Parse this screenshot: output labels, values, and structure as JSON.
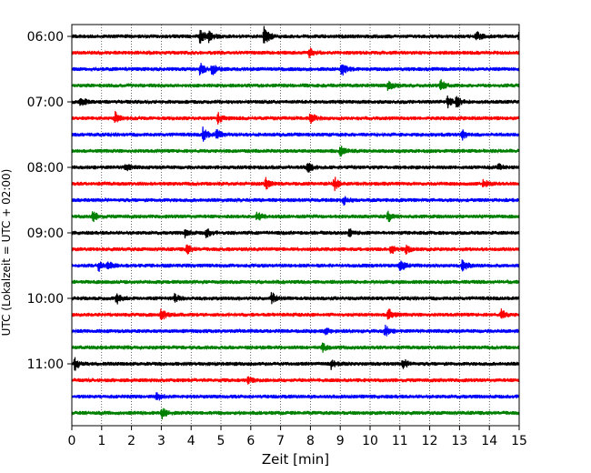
{
  "chart_data": {
    "type": "line",
    "title": "",
    "xlabel": "Zeit  [min]",
    "ylabel": "UTC (Lokalzeit = UTC + 02:00)",
    "xlim": [
      0,
      15
    ],
    "x_ticks": [
      0,
      1,
      2,
      3,
      4,
      5,
      6,
      7,
      8,
      9,
      10,
      11,
      12,
      13,
      14,
      15
    ],
    "x_tick_labels": [
      "0",
      "1",
      "2",
      "3",
      "4",
      "5",
      "6",
      "7",
      "8",
      "9",
      "10",
      "11",
      "12",
      "13",
      "14",
      "15"
    ],
    "y_tick_labels": [
      {
        "label": "06:00",
        "trace": 0
      },
      {
        "label": "07:00",
        "trace": 4
      },
      {
        "label": "08:00",
        "trace": 8
      },
      {
        "label": "09:00",
        "trace": 12
      },
      {
        "label": "10:00",
        "trace": 16
      },
      {
        "label": "11:00",
        "trace": 20
      }
    ],
    "grid": "vertical-dotted",
    "trace_colors": [
      "#000000",
      "#ff0000",
      "#0000ff",
      "#008000"
    ],
    "traces": [
      {
        "start": "06:00",
        "color": "#000000",
        "events": [
          {
            "t": 4.3,
            "a": 1.0
          },
          {
            "t": 4.6,
            "a": 0.6
          },
          {
            "t": 6.45,
            "a": 1.3
          },
          {
            "t": 13.55,
            "a": 0.7
          },
          {
            "t": 15.0,
            "a": 0.5
          }
        ]
      },
      {
        "start": "06:15",
        "color": "#ff0000",
        "events": [
          {
            "t": 7.95,
            "a": 0.6
          }
        ]
      },
      {
        "start": "06:30",
        "color": "#0000ff",
        "events": [
          {
            "t": 4.3,
            "a": 0.8
          },
          {
            "t": 4.7,
            "a": 0.7
          },
          {
            "t": 9.05,
            "a": 0.8
          }
        ]
      },
      {
        "start": "06:45",
        "color": "#008000",
        "events": [
          {
            "t": 10.6,
            "a": 0.7
          },
          {
            "t": 12.35,
            "a": 0.8
          }
        ]
      },
      {
        "start": "07:00",
        "color": "#000000",
        "events": [
          {
            "t": 0.3,
            "a": 0.7
          },
          {
            "t": 12.6,
            "a": 0.7
          },
          {
            "t": 12.9,
            "a": 0.6
          }
        ]
      },
      {
        "start": "07:15",
        "color": "#ff0000",
        "events": [
          {
            "t": 1.45,
            "a": 0.7
          },
          {
            "t": 4.9,
            "a": 0.6
          },
          {
            "t": 8.0,
            "a": 0.7
          }
        ]
      },
      {
        "start": "07:30",
        "color": "#0000ff",
        "events": [
          {
            "t": 4.4,
            "a": 0.9
          },
          {
            "t": 4.85,
            "a": 0.6
          },
          {
            "t": 13.1,
            "a": 0.6
          }
        ]
      },
      {
        "start": "07:45",
        "color": "#008000",
        "events": [
          {
            "t": 9.0,
            "a": 0.6
          }
        ]
      },
      {
        "start": "08:00",
        "color": "#000000",
        "events": [
          {
            "t": 1.8,
            "a": 0.5
          },
          {
            "t": 7.9,
            "a": 0.7
          },
          {
            "t": 14.3,
            "a": 0.4
          }
        ]
      },
      {
        "start": "08:15",
        "color": "#ff0000",
        "events": [
          {
            "t": 6.5,
            "a": 0.7
          },
          {
            "t": 8.8,
            "a": 0.8
          },
          {
            "t": 13.8,
            "a": 0.5
          }
        ]
      },
      {
        "start": "08:30",
        "color": "#0000ff",
        "events": [
          {
            "t": 9.1,
            "a": 0.6
          }
        ]
      },
      {
        "start": "08:45",
        "color": "#008000",
        "events": [
          {
            "t": 0.7,
            "a": 0.6
          },
          {
            "t": 6.2,
            "a": 0.6
          },
          {
            "t": 10.6,
            "a": 0.7
          }
        ]
      },
      {
        "start": "09:00",
        "color": "#000000",
        "events": [
          {
            "t": 3.8,
            "a": 0.5
          },
          {
            "t": 4.5,
            "a": 0.6
          },
          {
            "t": 9.3,
            "a": 0.5
          }
        ]
      },
      {
        "start": "09:15",
        "color": "#ff0000",
        "events": [
          {
            "t": 3.85,
            "a": 0.6
          },
          {
            "t": 10.7,
            "a": 0.6
          },
          {
            "t": 11.2,
            "a": 0.5
          }
        ]
      },
      {
        "start": "09:30",
        "color": "#0000ff",
        "events": [
          {
            "t": 0.9,
            "a": 0.6
          },
          {
            "t": 1.2,
            "a": 0.5
          },
          {
            "t": 11.0,
            "a": 0.9
          },
          {
            "t": 13.1,
            "a": 0.8
          }
        ]
      },
      {
        "start": "09:45",
        "color": "#008000",
        "events": []
      },
      {
        "start": "10:00",
        "color": "#000000",
        "events": [
          {
            "t": 1.5,
            "a": 0.7
          },
          {
            "t": 3.45,
            "a": 0.5
          },
          {
            "t": 6.7,
            "a": 0.7
          }
        ]
      },
      {
        "start": "10:15",
        "color": "#ff0000",
        "events": [
          {
            "t": 3.0,
            "a": 0.8
          },
          {
            "t": 10.6,
            "a": 0.9
          },
          {
            "t": 14.4,
            "a": 0.6
          }
        ]
      },
      {
        "start": "10:30",
        "color": "#0000ff",
        "events": [
          {
            "t": 10.5,
            "a": 0.7
          },
          {
            "t": 8.5,
            "a": 0.4
          }
        ]
      },
      {
        "start": "10:45",
        "color": "#008000",
        "events": [
          {
            "t": 8.4,
            "a": 0.5
          }
        ]
      },
      {
        "start": "11:00",
        "color": "#000000",
        "events": [
          {
            "t": 0.1,
            "a": 0.8
          },
          {
            "t": 8.7,
            "a": 0.6
          },
          {
            "t": 11.1,
            "a": 0.7
          }
        ]
      },
      {
        "start": "11:15",
        "color": "#ff0000",
        "events": [
          {
            "t": 5.9,
            "a": 0.4
          }
        ]
      },
      {
        "start": "11:30",
        "color": "#0000ff",
        "events": [
          {
            "t": 2.85,
            "a": 0.5
          }
        ]
      },
      {
        "start": "11:45",
        "color": "#008000",
        "events": [
          {
            "t": 3.0,
            "a": 0.7
          }
        ]
      }
    ]
  }
}
